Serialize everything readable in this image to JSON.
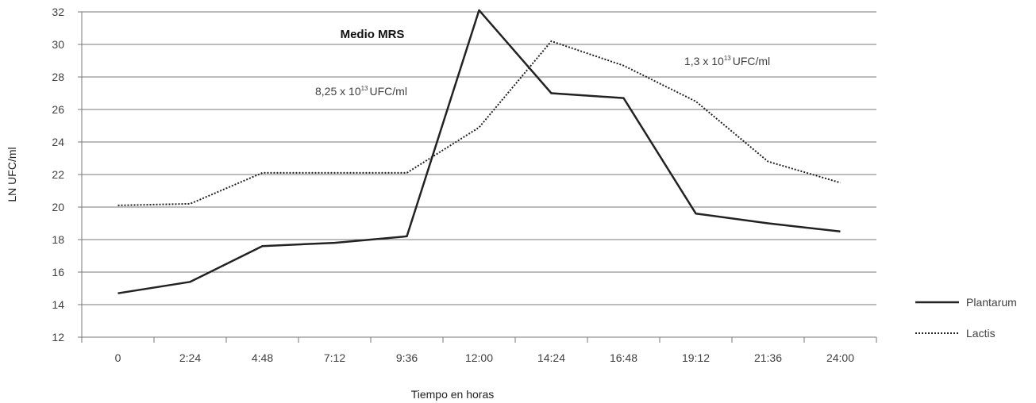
{
  "chart_data": {
    "type": "line",
    "title": "Medio MRS",
    "xlabel": "Tiempo en horas",
    "ylabel": "LN UFC/ml",
    "categories": [
      "0",
      "2:24",
      "4:48",
      "7:12",
      "9:36",
      "12:00",
      "14:24",
      "16:48",
      "19:12",
      "21:36",
      "24:00"
    ],
    "ylim": [
      12,
      32
    ],
    "yticks": [
      12,
      14,
      16,
      18,
      20,
      22,
      24,
      26,
      28,
      30,
      32
    ],
    "grid": true,
    "legend_position": "right",
    "series": [
      {
        "name": "Plantarum",
        "style": "solid",
        "color": "#222222",
        "values": [
          14.7,
          15.4,
          17.6,
          17.8,
          18.2,
          32.1,
          27.0,
          26.7,
          19.6,
          19.0,
          18.5
        ]
      },
      {
        "name": "Lactis",
        "style": "dotted",
        "color": "#222222",
        "values": [
          20.1,
          20.2,
          22.1,
          22.1,
          22.1,
          24.9,
          30.2,
          28.7,
          26.5,
          22.8,
          21.5
        ]
      }
    ],
    "annotations": [
      {
        "base": "8,25 x 10",
        "exp": "13",
        "unit": "UFC/ml"
      },
      {
        "base": "1,3 x 10",
        "exp": "13",
        "unit": "UFC/ml"
      }
    ]
  }
}
